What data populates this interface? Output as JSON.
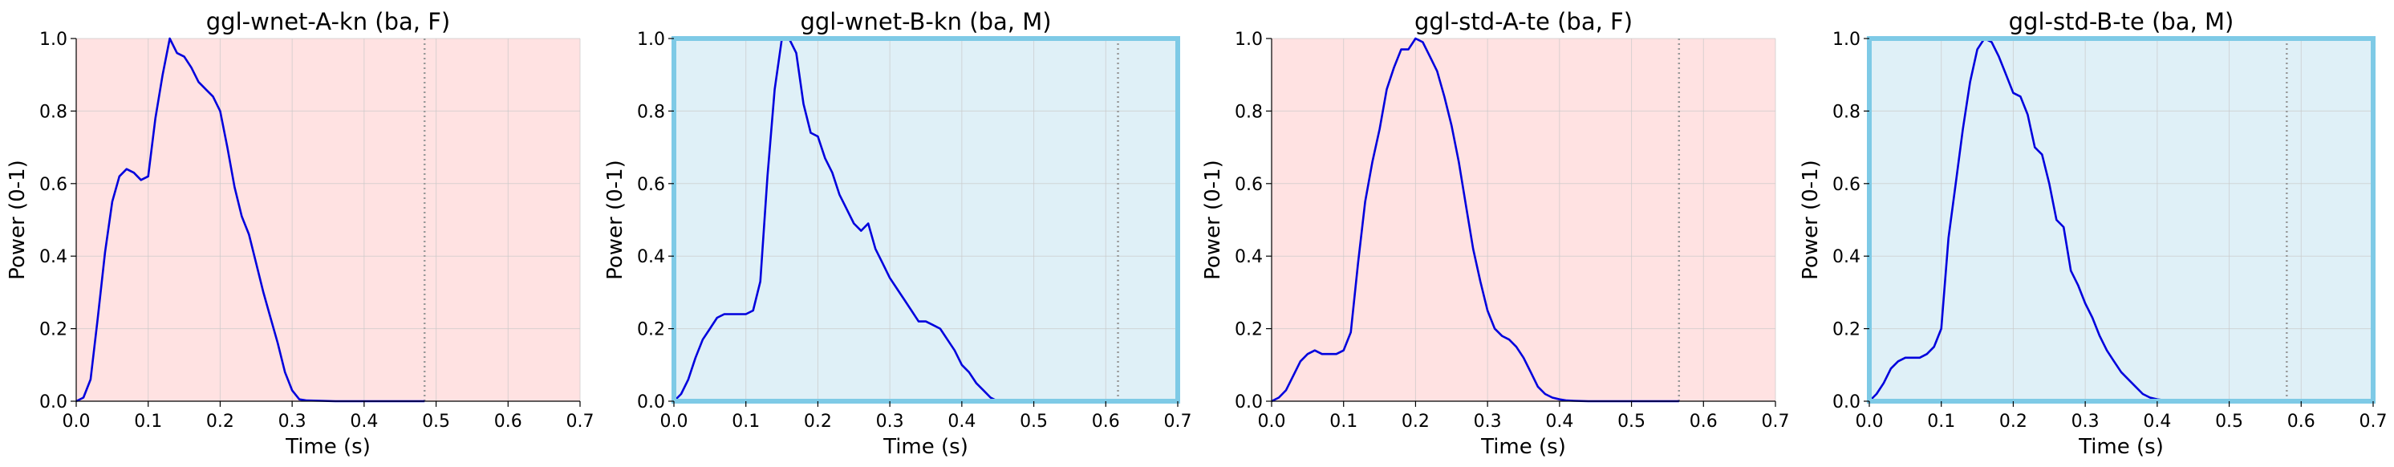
{
  "colors": {
    "line": "#0000dd",
    "female_bg": "#ffe2e2",
    "male_bg": "#dff0f7",
    "male_frame": "#7ecae6",
    "grid": "#c9c9c9",
    "vline": "#999999"
  },
  "chart_data": [
    {
      "type": "line",
      "title": "ggl-wnet-A-kn (ba, F)",
      "xlabel": "Time (s)",
      "ylabel": "Power (0-1)",
      "xlim": [
        0.0,
        0.7
      ],
      "ylim": [
        0.0,
        1.0
      ],
      "xticks": [
        "0.0",
        "0.1",
        "0.2",
        "0.3",
        "0.4",
        "0.5",
        "0.6",
        "0.7"
      ],
      "yticks": [
        "0.0",
        "0.2",
        "0.4",
        "0.6",
        "0.8",
        "1.0"
      ],
      "grid": true,
      "background": "female",
      "vline_x": 0.484,
      "x": [
        0.0,
        0.01,
        0.02,
        0.03,
        0.04,
        0.05,
        0.06,
        0.07,
        0.08,
        0.09,
        0.1,
        0.11,
        0.12,
        0.13,
        0.14,
        0.15,
        0.16,
        0.17,
        0.18,
        0.19,
        0.2,
        0.21,
        0.22,
        0.23,
        0.24,
        0.25,
        0.26,
        0.27,
        0.28,
        0.29,
        0.3,
        0.31,
        0.32,
        0.34,
        0.36,
        0.38,
        0.4,
        0.42,
        0.44,
        0.46,
        0.484
      ],
      "y": [
        0.0,
        0.01,
        0.06,
        0.23,
        0.41,
        0.55,
        0.62,
        0.64,
        0.63,
        0.61,
        0.62,
        0.78,
        0.9,
        1.0,
        0.96,
        0.95,
        0.92,
        0.88,
        0.86,
        0.84,
        0.8,
        0.7,
        0.59,
        0.51,
        0.46,
        0.38,
        0.3,
        0.23,
        0.16,
        0.08,
        0.03,
        0.005,
        0.002,
        0.001,
        0.0,
        0.0,
        0.0,
        0.0,
        0.0,
        0.0,
        0.0
      ]
    },
    {
      "type": "line",
      "title": "ggl-wnet-B-kn (ba, M)",
      "xlabel": "Time (s)",
      "ylabel": "Power (0-1)",
      "xlim": [
        0.0,
        0.7
      ],
      "ylim": [
        0.0,
        1.0
      ],
      "xticks": [
        "0.0",
        "0.1",
        "0.2",
        "0.3",
        "0.4",
        "0.5",
        "0.6",
        "0.7"
      ],
      "yticks": [
        "0.0",
        "0.2",
        "0.4",
        "0.6",
        "0.8",
        "1.0"
      ],
      "grid": true,
      "background": "male",
      "vline_x": 0.617,
      "x": [
        0.0,
        0.01,
        0.02,
        0.03,
        0.04,
        0.05,
        0.06,
        0.07,
        0.08,
        0.09,
        0.1,
        0.11,
        0.12,
        0.13,
        0.14,
        0.15,
        0.16,
        0.17,
        0.18,
        0.19,
        0.2,
        0.21,
        0.22,
        0.23,
        0.24,
        0.25,
        0.26,
        0.27,
        0.28,
        0.29,
        0.3,
        0.31,
        0.32,
        0.33,
        0.34,
        0.35,
        0.36,
        0.37,
        0.38,
        0.39,
        0.4,
        0.41,
        0.42,
        0.43,
        0.44,
        0.45,
        0.47,
        0.5
      ],
      "y": [
        0.0,
        0.02,
        0.06,
        0.12,
        0.17,
        0.2,
        0.23,
        0.24,
        0.24,
        0.24,
        0.24,
        0.25,
        0.33,
        0.62,
        0.86,
        1.0,
        1.0,
        0.96,
        0.82,
        0.74,
        0.73,
        0.67,
        0.63,
        0.57,
        0.53,
        0.49,
        0.47,
        0.49,
        0.42,
        0.38,
        0.34,
        0.31,
        0.28,
        0.25,
        0.22,
        0.22,
        0.21,
        0.2,
        0.17,
        0.14,
        0.1,
        0.08,
        0.05,
        0.03,
        0.01,
        0.0,
        0.0,
        0.0
      ]
    },
    {
      "type": "line",
      "title": "ggl-std-A-te (ba, F)",
      "xlabel": "Time (s)",
      "ylabel": "Power (0-1)",
      "xlim": [
        0.0,
        0.7
      ],
      "ylim": [
        0.0,
        1.0
      ],
      "xticks": [
        "0.0",
        "0.1",
        "0.2",
        "0.3",
        "0.4",
        "0.5",
        "0.6",
        "0.7"
      ],
      "yticks": [
        "0.0",
        "0.2",
        "0.4",
        "0.6",
        "0.8",
        "1.0"
      ],
      "grid": true,
      "background": "female",
      "vline_x": 0.566,
      "x": [
        0.0,
        0.01,
        0.02,
        0.03,
        0.04,
        0.05,
        0.06,
        0.07,
        0.08,
        0.09,
        0.1,
        0.11,
        0.12,
        0.13,
        0.14,
        0.15,
        0.16,
        0.17,
        0.18,
        0.19,
        0.2,
        0.21,
        0.22,
        0.23,
        0.24,
        0.25,
        0.26,
        0.27,
        0.28,
        0.29,
        0.3,
        0.31,
        0.32,
        0.33,
        0.34,
        0.35,
        0.36,
        0.37,
        0.38,
        0.39,
        0.4,
        0.41,
        0.42,
        0.44,
        0.46,
        0.5,
        0.566
      ],
      "y": [
        0.0,
        0.01,
        0.03,
        0.07,
        0.11,
        0.13,
        0.14,
        0.13,
        0.13,
        0.13,
        0.14,
        0.19,
        0.38,
        0.55,
        0.66,
        0.75,
        0.86,
        0.92,
        0.97,
        0.97,
        1.0,
        0.99,
        0.95,
        0.91,
        0.84,
        0.76,
        0.66,
        0.54,
        0.42,
        0.33,
        0.25,
        0.2,
        0.18,
        0.17,
        0.15,
        0.12,
        0.08,
        0.04,
        0.02,
        0.01,
        0.005,
        0.002,
        0.001,
        0.0,
        0.0,
        0.0,
        0.0
      ]
    },
    {
      "type": "line",
      "title": "ggl-std-B-te (ba, M)",
      "xlabel": "Time (s)",
      "ylabel": "Power (0-1)",
      "xlim": [
        0.0,
        0.7
      ],
      "ylim": [
        0.0,
        1.0
      ],
      "xticks": [
        "0.0",
        "0.1",
        "0.2",
        "0.3",
        "0.4",
        "0.5",
        "0.6",
        "0.7"
      ],
      "yticks": [
        "0.0",
        "0.2",
        "0.4",
        "0.6",
        "0.8",
        "1.0"
      ],
      "grid": true,
      "background": "male",
      "vline_x": 0.58,
      "x": [
        0.0,
        0.01,
        0.02,
        0.03,
        0.04,
        0.05,
        0.06,
        0.07,
        0.08,
        0.09,
        0.1,
        0.11,
        0.12,
        0.13,
        0.14,
        0.15,
        0.16,
        0.17,
        0.18,
        0.19,
        0.2,
        0.21,
        0.22,
        0.23,
        0.24,
        0.25,
        0.26,
        0.27,
        0.28,
        0.29,
        0.3,
        0.31,
        0.32,
        0.33,
        0.34,
        0.35,
        0.36,
        0.37,
        0.38,
        0.39,
        0.4,
        0.42,
        0.45,
        0.5
      ],
      "y": [
        0.0,
        0.02,
        0.05,
        0.09,
        0.11,
        0.12,
        0.12,
        0.12,
        0.13,
        0.15,
        0.2,
        0.45,
        0.6,
        0.75,
        0.88,
        0.97,
        1.0,
        0.99,
        0.95,
        0.9,
        0.85,
        0.84,
        0.79,
        0.7,
        0.68,
        0.6,
        0.5,
        0.48,
        0.36,
        0.32,
        0.27,
        0.23,
        0.18,
        0.14,
        0.11,
        0.08,
        0.06,
        0.04,
        0.02,
        0.01,
        0.005,
        0.0,
        0.0,
        0.0
      ]
    }
  ]
}
